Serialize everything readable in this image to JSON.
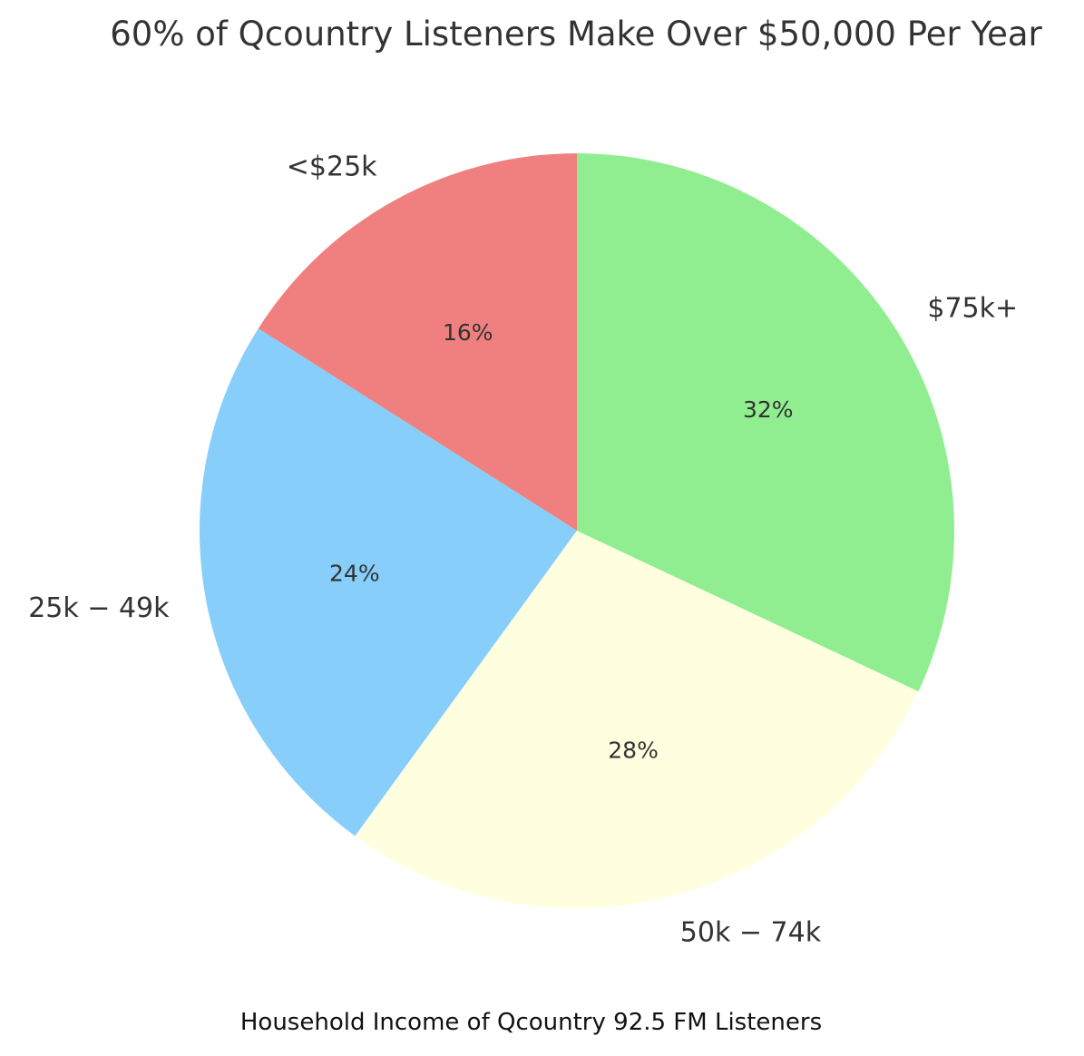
{
  "chart_data": {
    "type": "pie",
    "title": "60% of Qcountry Listeners Make Over $50,000 Per Year",
    "caption": "Household Income of Qcountry 92.5 FM Listeners",
    "categories": [
      "<$25k",
      "$25k-$49k",
      "$50k-$74k",
      "$75k+"
    ],
    "display_labels": [
      "<$25k",
      "25k − 49k",
      "50k − 74k",
      "$75k+"
    ],
    "values": [
      16,
      24,
      28,
      32
    ],
    "percent_labels": [
      "16%",
      "24%",
      "28%",
      "32%"
    ],
    "colors": [
      "#f08080",
      "#87cefa",
      "#ffffe0",
      "#90ee90"
    ],
    "start_angle_deg": 90,
    "direction": "counterclockwise"
  }
}
